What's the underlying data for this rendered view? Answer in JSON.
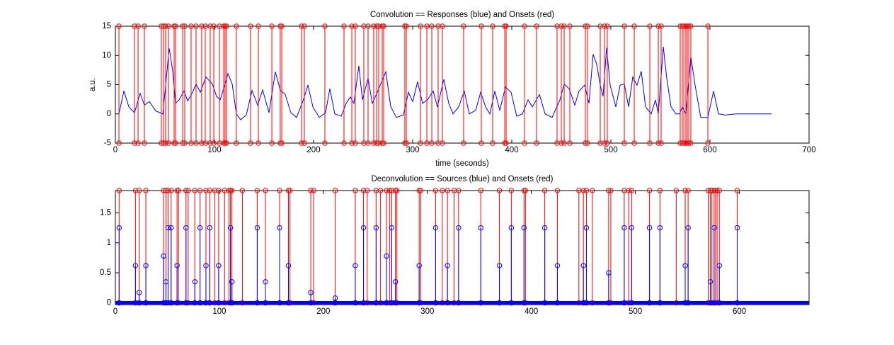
{
  "chart_data": [
    {
      "type": "line",
      "title": "Convolution == Responses (blue) and Onsets (red)",
      "xlabel": "time (seconds)",
      "ylabel": "a.u.",
      "xlim": [
        0,
        700
      ],
      "xticks": [
        0,
        100,
        200,
        300,
        400,
        500,
        600,
        700
      ],
      "ylim": [
        -5,
        15
      ],
      "yticks": [
        -5,
        0,
        5,
        10,
        15
      ],
      "series": [
        {
          "name": "Responses",
          "color": "#0000ff",
          "style": "line",
          "x": [
            3.6,
            8.6,
            13.6,
            19.3,
            25,
            29.3,
            34.3,
            40.7,
            47.9,
            50.7,
            54.3,
            57.9,
            60.7,
            64.3,
            69.3,
            72.9,
            77.9,
            81.4,
            85.7,
            91.4,
            97.9,
            102.1,
            105.7,
            110.7,
            113.6,
            117.9,
            122.1,
            126.4,
            132.1,
            137.9,
            143.6,
            148.6,
            155,
            161.4,
            166.4,
            171.4,
            177.1,
            182.9,
            189.3,
            194.3,
            199.3,
            205.7,
            212.1,
            216.4,
            221.4,
            227.9,
            232.9,
            237.1,
            240.7,
            245.7,
            249.3,
            255,
            259.3,
            264.3,
            272.9,
            277.9,
            283.6,
            290.7,
            295.7,
            300,
            305,
            310,
            315,
            320.7,
            325,
            331.4,
            336.4,
            340.7,
            346.4,
            352.1,
            357.1,
            363.6,
            368.6,
            373.6,
            377.9,
            382.9,
            387.9,
            393.6,
            399.3,
            405,
            410.7,
            416.4,
            420.7,
            427.9,
            433.6,
            440.7,
            448.6,
            452.9,
            457.9,
            463.6,
            467.9,
            473.6,
            477.9,
            482.1,
            485.7,
            489.3,
            492.1,
            495.7,
            499.3,
            505,
            509.3,
            513.6,
            517.9,
            522.1,
            526.4,
            530.7,
            535,
            540.7,
            545,
            547.9,
            552.9,
            556.4,
            560.7,
            565.7,
            569.3,
            572.1,
            575.7,
            580.7,
            585,
            590.7,
            597.9,
            603.6,
            608.6,
            615.7,
            626.4,
            662.1
          ],
          "values": [
            0,
            3.9,
            1.2,
            0.2,
            3.5,
            1.5,
            2.1,
            0.5,
            0,
            4.9,
            11.2,
            7.3,
            1.8,
            2.4,
            3.9,
            2.2,
            3.7,
            5.1,
            3.7,
            6.3,
            5.1,
            3,
            2.4,
            5.1,
            6.9,
            5.1,
            0,
            -1,
            -0.2,
            4,
            1.5,
            4.1,
            0.2,
            7.2,
            4.1,
            3.3,
            0.2,
            -0.6,
            2.2,
            4.9,
            1.2,
            -0.6,
            0.2,
            4.3,
            0,
            -0.4,
            1.8,
            2.9,
            1.8,
            8.2,
            2.4,
            6.1,
            1.8,
            3.7,
            7.2,
            1.2,
            -0.6,
            -0.2,
            3.7,
            2.1,
            5.5,
            1.8,
            2.4,
            3.9,
            1.2,
            5.9,
            1.8,
            0,
            1.2,
            3.9,
            0,
            0.6,
            3.7,
            1.2,
            0,
            3.9,
            0.6,
            4.6,
            3.7,
            -0.4,
            0,
            2.4,
            1.2,
            3.3,
            0,
            -0.6,
            2.4,
            5.1,
            4.3,
            1.5,
            3.9,
            4.9,
            1.8,
            10.2,
            8.5,
            4.9,
            3,
            11.3,
            4.9,
            1.2,
            4.9,
            5.1,
            1.2,
            6.3,
            4.9,
            7.3,
            1.2,
            0,
            2.4,
            0,
            11.5,
            6.1,
            1.2,
            0,
            0,
            1.2,
            0,
            9.8,
            4.9,
            -0.6,
            -0.6,
            3.9,
            0,
            -0.2,
            0,
            0
          ]
        },
        {
          "name": "Onsets",
          "color": "#ff0000",
          "style": "stem",
          "baseline": -5,
          "x": [
            3.6,
            19.3,
            22.9,
            29.3,
            46.4,
            48.6,
            50.7,
            53.6,
            59.3,
            60.7,
            67.9,
            70,
            76.4,
            81.4,
            87.1,
            90.7,
            95.7,
            99.3,
            105,
            109.3,
            110.7,
            112.1,
            122.1,
            136.4,
            144.3,
            157.9,
            166.4,
            167.9,
            187.9,
            190.7,
            211.4,
            230.7,
            238.6,
            242.1,
            250.7,
            255,
            260.7,
            263.6,
            265.7,
            269.3,
            270.7,
            292.1,
            293.6,
            307.9,
            314.3,
            319.3,
            325.7,
            330,
            351.4,
            369.3,
            380.7,
            392.9,
            394.3,
            412.9,
            425,
            445.7,
            450,
            452.9,
            458.6,
            474.3,
            476.4,
            489.3,
            493.6,
            496.4,
            513.6,
            523.6,
            539.3,
            547.9,
            550.7,
            570,
            572.1,
            573.6,
            575.7,
            577.1,
            578.6,
            580.7,
            597.9
          ],
          "values": [
            15,
            15,
            15,
            15,
            15,
            15,
            15,
            15,
            15,
            15,
            15,
            15,
            15,
            15,
            15,
            15,
            15,
            15,
            15,
            15,
            15,
            15,
            15,
            15,
            15,
            15,
            15,
            15,
            15,
            15,
            15,
            15,
            15,
            15,
            15,
            15,
            15,
            15,
            15,
            15,
            15,
            15,
            15,
            15,
            15,
            15,
            15,
            15,
            15,
            15,
            15,
            15,
            15,
            15,
            15,
            15,
            15,
            15,
            15,
            15,
            15,
            15,
            15,
            15,
            15,
            15,
            15,
            15,
            15,
            15,
            15,
            15,
            15,
            15,
            15,
            15,
            15
          ]
        }
      ]
    },
    {
      "type": "line",
      "title": "Deconvolution == Sources (blue) and Onsets (red)",
      "xlim": [
        0,
        667
      ],
      "xticks": [
        0,
        100,
        200,
        300,
        400,
        500,
        600
      ],
      "ylim": [
        -0.03,
        1.87
      ],
      "yticks": [
        0,
        0.5,
        1,
        1.5
      ],
      "series": [
        {
          "name": "Onsets",
          "color": "#ff0000",
          "style": "stem",
          "baseline": 0,
          "x": [
            3.6,
            19.3,
            22.9,
            29.3,
            46.4,
            48.6,
            50.7,
            53.6,
            59.3,
            60.7,
            67.9,
            70,
            76.4,
            81.4,
            87.1,
            90.7,
            95.7,
            99.3,
            105,
            109.3,
            110.7,
            112.1,
            122.1,
            136.4,
            144.3,
            157.9,
            166.4,
            167.9,
            187.9,
            190.7,
            211.4,
            230.7,
            238.6,
            242.1,
            250.7,
            255,
            260.7,
            263.6,
            265.7,
            269.3,
            270.7,
            292.1,
            293.6,
            307.9,
            314.3,
            319.3,
            325.7,
            330,
            351.4,
            369.3,
            380.7,
            392.9,
            394.3,
            412.9,
            425,
            445.7,
            450,
            452.9,
            458.6,
            474.3,
            476.4,
            489.3,
            493.6,
            496.4,
            513.6,
            523.6,
            539.3,
            547.9,
            550.7,
            570,
            572.1,
            573.6,
            575.7,
            577.1,
            578.6,
            580.7,
            597.9
          ],
          "values": [
            1.87,
            1.87,
            1.87,
            1.87,
            1.87,
            1.87,
            1.87,
            1.87,
            1.87,
            1.87,
            1.87,
            1.87,
            1.87,
            1.87,
            1.87,
            1.87,
            1.87,
            1.87,
            1.87,
            1.87,
            1.87,
            1.87,
            1.87,
            1.87,
            1.87,
            1.87,
            1.87,
            1.87,
            1.87,
            1.87,
            1.87,
            1.87,
            1.87,
            1.87,
            1.87,
            1.87,
            1.87,
            1.87,
            1.87,
            1.87,
            1.87,
            1.87,
            1.87,
            1.87,
            1.87,
            1.87,
            1.87,
            1.87,
            1.87,
            1.87,
            1.87,
            1.87,
            1.87,
            1.87,
            1.87,
            1.87,
            1.87,
            1.87,
            1.87,
            1.87,
            1.87,
            1.87,
            1.87,
            1.87,
            1.87,
            1.87,
            1.87,
            1.87,
            1.87,
            1.87,
            1.87,
            1.87,
            1.87,
            1.87,
            1.87,
            1.87,
            1.87
          ]
        },
        {
          "name": "Sources",
          "color": "#0000ff",
          "style": "stem",
          "baseline": 0,
          "baseline_line": [
            0,
            667
          ],
          "x": [
            3.6,
            19.3,
            22.9,
            29.3,
            46.4,
            48.6,
            50.7,
            53.6,
            59.3,
            67.9,
            76.4,
            81.4,
            87.1,
            90.7,
            99.3,
            110.7,
            112.1,
            136.4,
            144.3,
            157.9,
            166.4,
            187.9,
            211.4,
            230.7,
            238.6,
            250.7,
            260.7,
            265.7,
            269.3,
            292.1,
            307.9,
            319.3,
            330,
            351.4,
            369.3,
            380.7,
            392.9,
            412.9,
            425,
            450,
            452.9,
            474.3,
            489.3,
            496.4,
            513.6,
            523.6,
            547.9,
            550.7,
            572.1,
            575.7,
            580.7,
            597.9
          ],
          "values": [
            1.25,
            0.62,
            0.17,
            0.62,
            0.78,
            0.35,
            1.25,
            1.25,
            0.62,
            1.25,
            0.35,
            1.25,
            0.62,
            1.25,
            0.62,
            1.25,
            0.35,
            1.25,
            0.35,
            1.25,
            0.62,
            0.17,
            0.08,
            0.62,
            1.25,
            1.25,
            0.78,
            1.25,
            0.35,
            0.62,
            1.25,
            0.62,
            1.25,
            1.25,
            0.62,
            1.25,
            1.25,
            1.25,
            0.62,
            0.62,
            1.25,
            0.5,
            1.25,
            1.25,
            1.25,
            1.25,
            0.62,
            1.25,
            0.35,
            1.25,
            0.62,
            1.25
          ]
        }
      ]
    }
  ]
}
